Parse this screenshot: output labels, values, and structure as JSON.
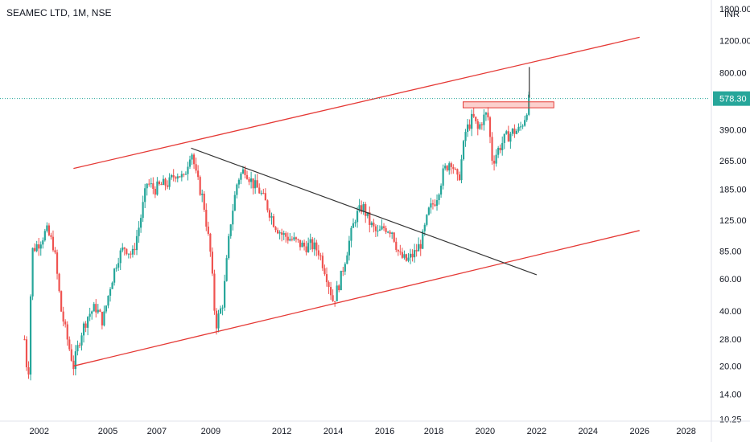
{
  "chart_data": {
    "type": "candlestick",
    "title": "SEAMEC LTD, 1M, NSE",
    "currency": "INR",
    "scale": "log",
    "y_ticks": [
      1800,
      1200,
      800,
      578.3,
      390,
      265,
      185,
      125,
      85,
      60,
      40,
      28,
      20,
      14,
      10.25
    ],
    "y_tick_labels": [
      "1800.00",
      "1200.00",
      "800.00",
      "578.30",
      "390.00",
      "265.00",
      "185.00",
      "125.00",
      "85.00",
      "60.00",
      "40.00",
      "28.00",
      "20.00",
      "14.00",
      "10.25"
    ],
    "x_ticks": [
      "2002",
      "2005",
      "2007",
      "2009",
      "2012",
      "2014",
      "2016",
      "2018",
      "2020",
      "2022",
      "2024",
      "2026",
      "2028"
    ],
    "x_tick_years": [
      2001.7,
      2004.5,
      2006.5,
      2008.7,
      2011.6,
      2013.7,
      2015.8,
      2017.8,
      2019.9,
      2022.0,
      2024.1,
      2026.2,
      2028.1
    ],
    "ylim": [
      10,
      1900
    ],
    "xlim": [
      2000.1,
      2029.0
    ],
    "last_price": 578.3,
    "last_price_label": "578.30",
    "last_price_color": "#26a69a",
    "up_color": "#26a69a",
    "down_color": "#ef5350",
    "price_path": [
      [
        2001.1,
        28
      ],
      [
        2001.25,
        16
      ],
      [
        2001.4,
        85
      ],
      [
        2001.7,
        95
      ],
      [
        2002.0,
        110
      ],
      [
        2002.3,
        90
      ],
      [
        2002.6,
        40
      ],
      [
        2002.9,
        26
      ],
      [
        2003.1,
        20
      ],
      [
        2003.4,
        30
      ],
      [
        2003.7,
        38
      ],
      [
        2004.0,
        42
      ],
      [
        2004.3,
        35
      ],
      [
        2004.6,
        55
      ],
      [
        2004.9,
        78
      ],
      [
        2005.2,
        90
      ],
      [
        2005.5,
        80
      ],
      [
        2005.8,
        120
      ],
      [
        2006.1,
        200
      ],
      [
        2006.4,
        185
      ],
      [
        2006.7,
        195
      ],
      [
        2007.0,
        200
      ],
      [
        2007.3,
        230
      ],
      [
        2007.6,
        210
      ],
      [
        2007.9,
        310
      ],
      [
        2008.1,
        220
      ],
      [
        2008.4,
        160
      ],
      [
        2008.7,
        80
      ],
      [
        2008.9,
        33
      ],
      [
        2009.2,
        45
      ],
      [
        2009.5,
        120
      ],
      [
        2009.8,
        210
      ],
      [
        2010.1,
        240
      ],
      [
        2010.4,
        200
      ],
      [
        2010.7,
        180
      ],
      [
        2011.0,
        150
      ],
      [
        2011.3,
        120
      ],
      [
        2011.6,
        105
      ],
      [
        2011.9,
        100
      ],
      [
        2012.2,
        95
      ],
      [
        2012.5,
        90
      ],
      [
        2012.8,
        92
      ],
      [
        2013.1,
        85
      ],
      [
        2013.4,
        65
      ],
      [
        2013.7,
        45
      ],
      [
        2014.0,
        60
      ],
      [
        2014.3,
        90
      ],
      [
        2014.6,
        130
      ],
      [
        2014.9,
        150
      ],
      [
        2015.2,
        120
      ],
      [
        2015.5,
        105
      ],
      [
        2015.8,
        115
      ],
      [
        2016.1,
        110
      ],
      [
        2016.4,
        80
      ],
      [
        2016.7,
        75
      ],
      [
        2017.0,
        82
      ],
      [
        2017.3,
        95
      ],
      [
        2017.6,
        140
      ],
      [
        2017.9,
        165
      ],
      [
        2018.2,
        230
      ],
      [
        2018.5,
        270
      ],
      [
        2018.8,
        200
      ],
      [
        2019.1,
        380
      ],
      [
        2019.4,
        460
      ],
      [
        2019.6,
        390
      ],
      [
        2019.8,
        450
      ],
      [
        2020.0,
        480
      ],
      [
        2020.2,
        260
      ],
      [
        2020.4,
        300
      ],
      [
        2020.7,
        350
      ],
      [
        2021.0,
        380
      ],
      [
        2021.3,
        390
      ],
      [
        2021.5,
        450
      ],
      [
        2021.7,
        578
      ]
    ],
    "annotations": {
      "upper_channel": [
        [
          2003.1,
          240
        ],
        [
          2026.2,
          1250
        ]
      ],
      "lower_channel": [
        [
          2003.1,
          20
        ],
        [
          2026.2,
          110
        ]
      ],
      "descending_trendline": [
        [
          2007.9,
          310
        ],
        [
          2022.0,
          63
        ]
      ],
      "resistance_zone": {
        "x0": 2019.0,
        "x1": 2022.7,
        "y0": 515,
        "y1": 555
      },
      "projection": [
        [
          2021.7,
          585
        ],
        [
          2021.7,
          860
        ]
      ]
    }
  }
}
